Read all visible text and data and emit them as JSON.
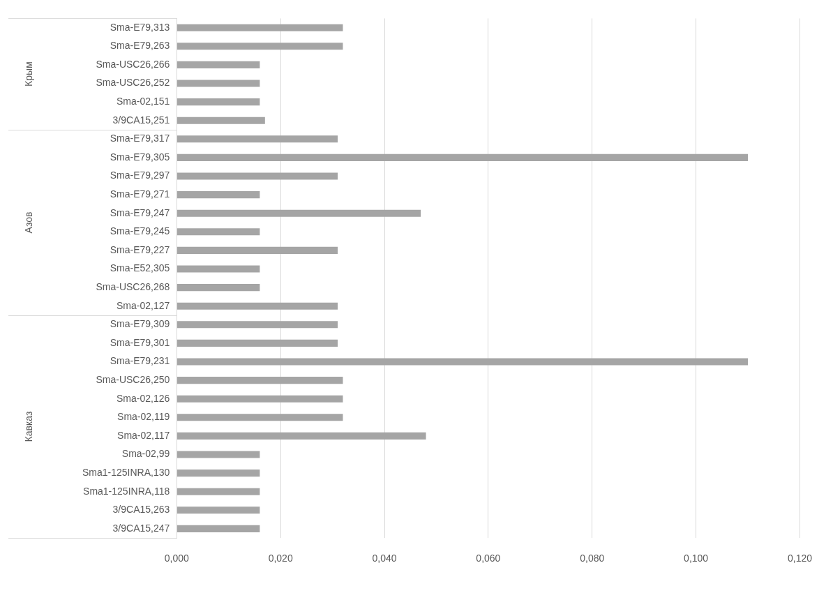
{
  "chart_data": {
    "type": "bar",
    "orientation": "horizontal",
    "color": "#a5a5a5",
    "categories": [
      "Sma-E79,313",
      "Sma-E79,263",
      "Sma-USC26,266",
      "Sma-USC26,252",
      "Sma-02,151",
      "3/9CA15,251",
      "Sma-E79,317",
      "Sma-E79,305",
      "Sma-E79,297",
      "Sma-E79,271",
      "Sma-E79,247",
      "Sma-E79,245",
      "Sma-E79,227",
      "Sma-E52,305",
      "Sma-USC26,268",
      "Sma-02,127",
      "Sma-E79,309",
      "Sma-E79,301",
      "Sma-E79,231",
      "Sma-USC26,250",
      "Sma-02,126",
      "Sma-02,119",
      "Sma-02,117",
      "Sma-02,99",
      "Sma1-125INRA,130",
      "Sma1-125INRA,118",
      "3/9CA15,263",
      "3/9CA15,247"
    ],
    "values": [
      0.032,
      0.032,
      0.016,
      0.016,
      0.016,
      0.017,
      0.031,
      0.11,
      0.031,
      0.016,
      0.047,
      0.016,
      0.031,
      0.016,
      0.016,
      0.031,
      0.031,
      0.031,
      0.11,
      0.032,
      0.032,
      0.032,
      0.048,
      0.016,
      0.016,
      0.016,
      0.016,
      0.016
    ],
    "xlim": [
      0,
      0.12
    ],
    "xticks": [
      {
        "value": 0,
        "label": "0,000"
      },
      {
        "value": 0.02,
        "label": "0,020"
      },
      {
        "value": 0.04,
        "label": "0,040"
      },
      {
        "value": 0.06,
        "label": "0,060"
      },
      {
        "value": 0.08,
        "label": "0,080"
      },
      {
        "value": 0.1,
        "label": "0,100"
      },
      {
        "value": 0.12,
        "label": "0,120"
      }
    ],
    "grid": "x",
    "legend": false,
    "annotations": [
      "Крым",
      "Азов",
      "Кавказ"
    ]
  }
}
